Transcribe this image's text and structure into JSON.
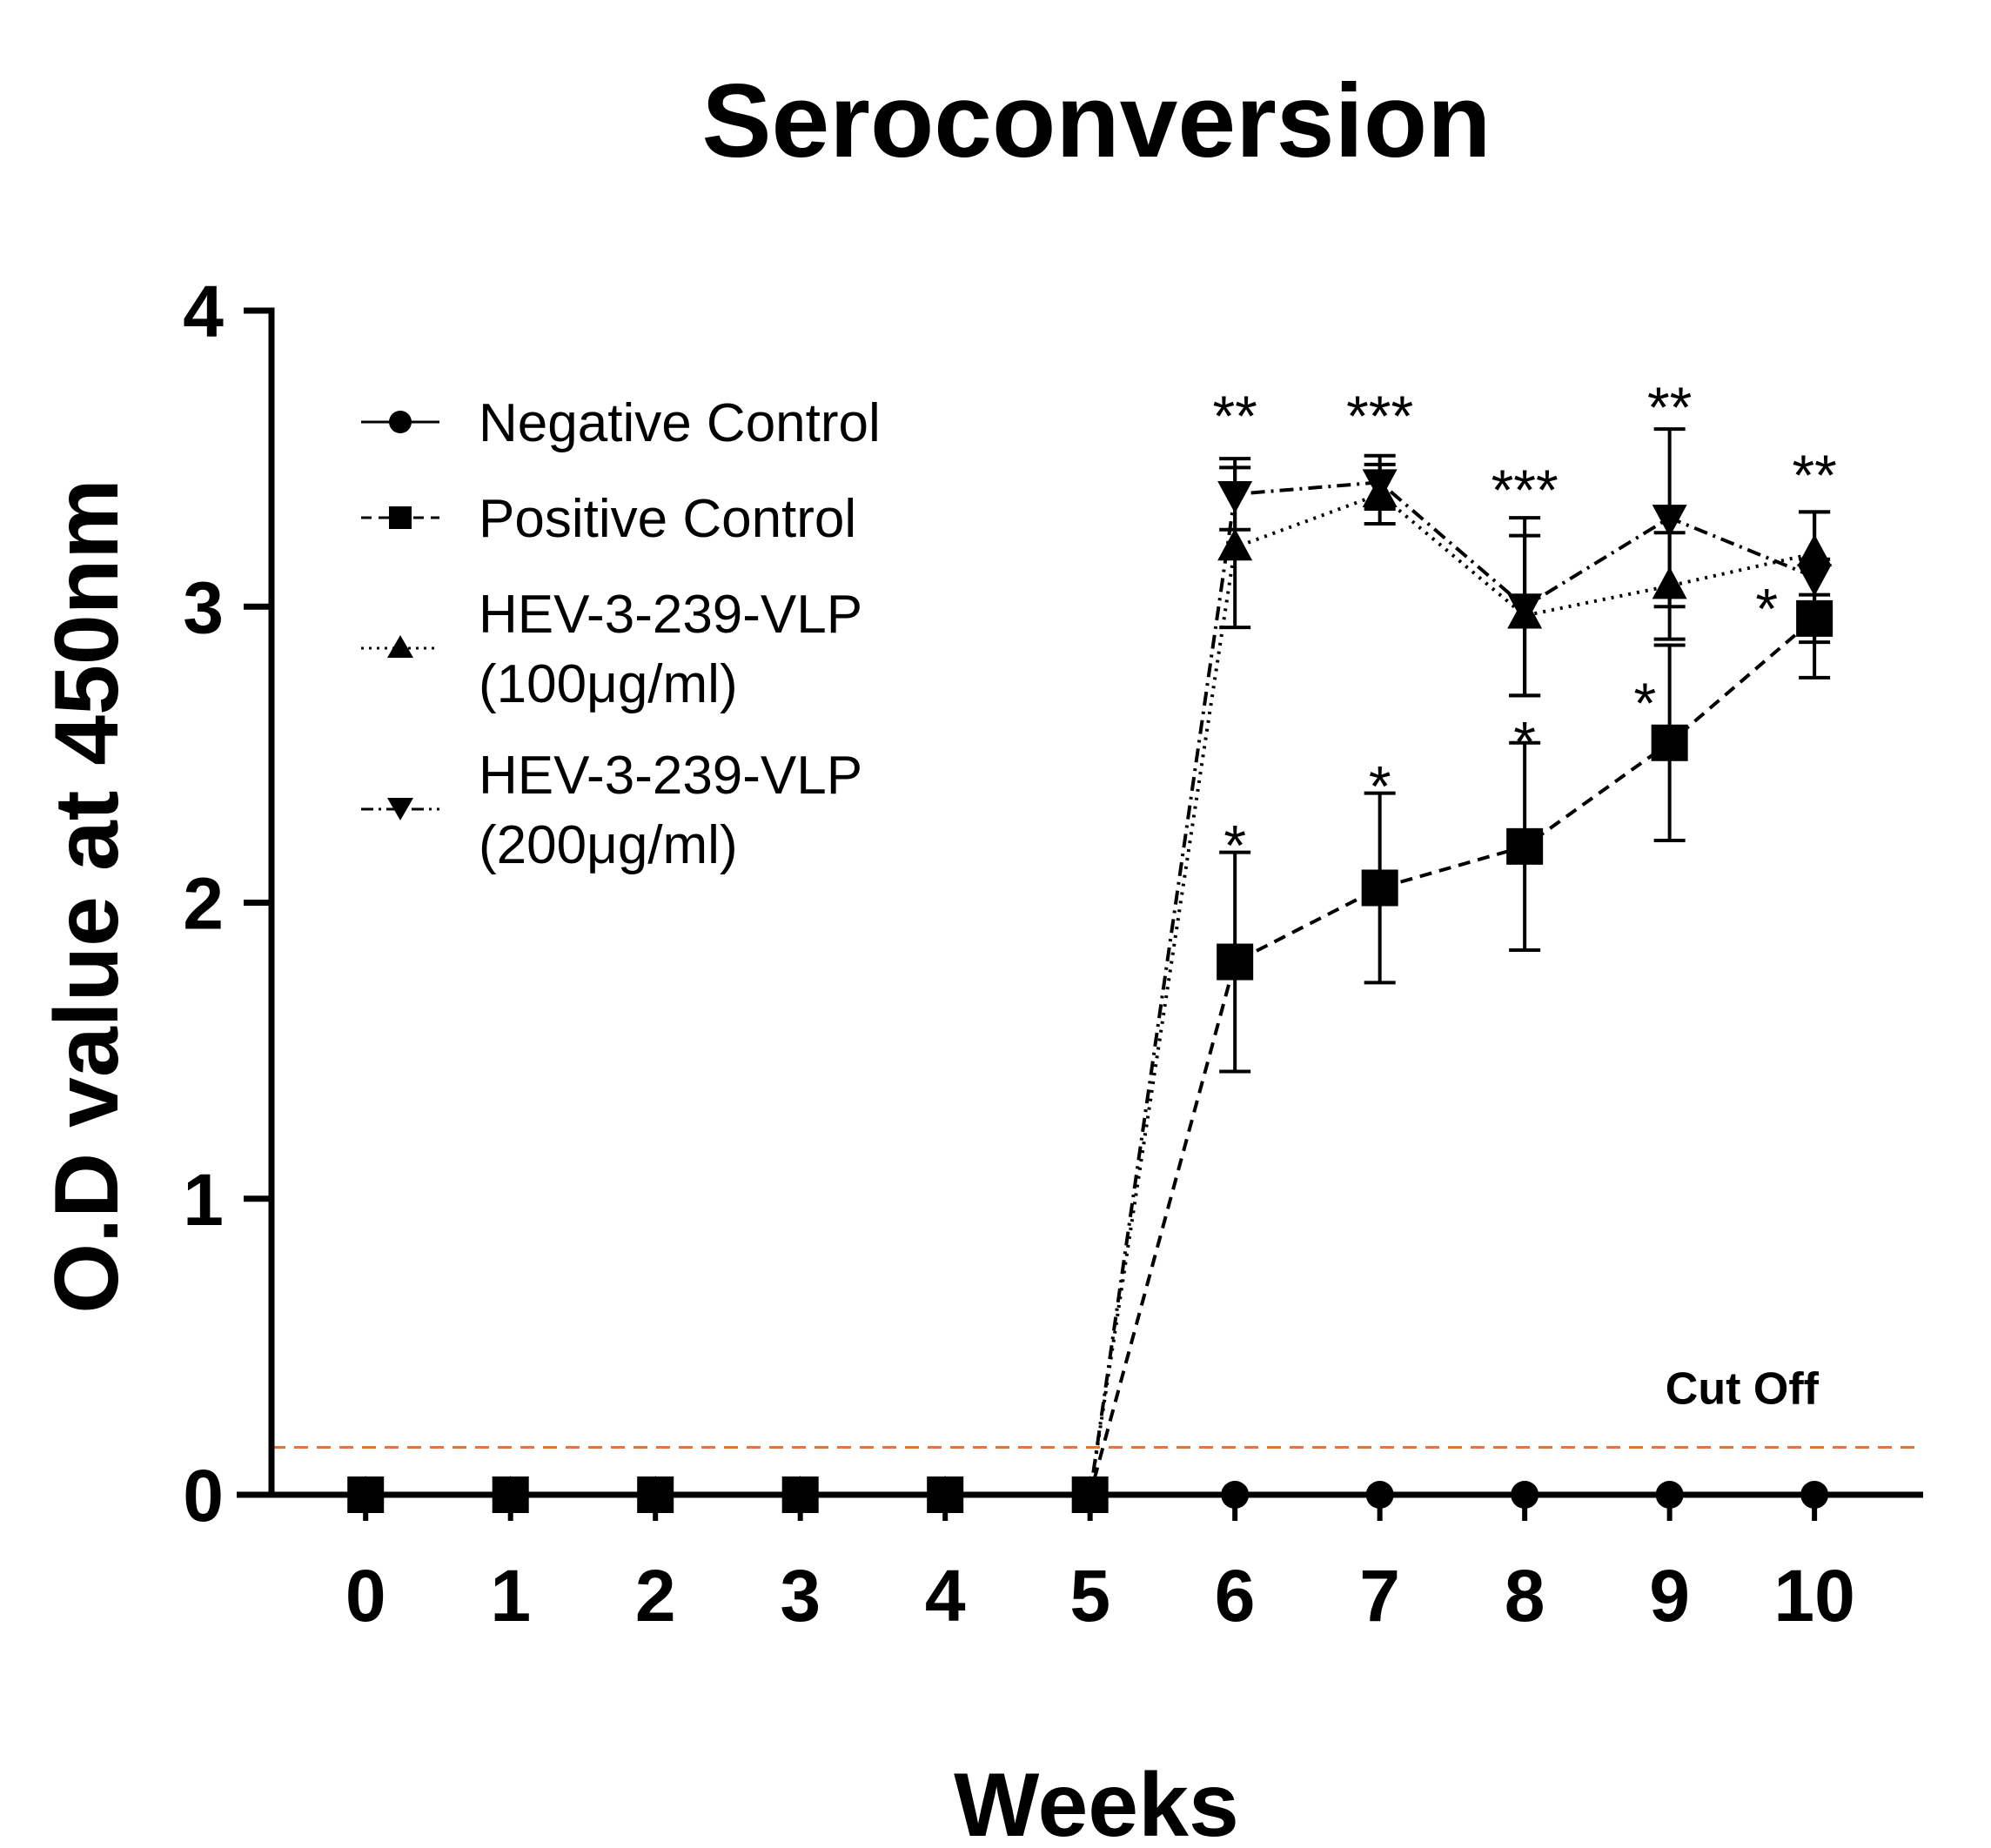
{
  "chart_data": {
    "type": "line",
    "title": "Seroconversion",
    "xlabel": "Weeks",
    "ylabel": "O.D value at 450nm",
    "x": [
      0,
      1,
      2,
      3,
      4,
      5,
      6,
      7,
      8,
      9,
      10
    ],
    "xlim": [
      -0.65,
      10.75
    ],
    "ylim": [
      0,
      4
    ],
    "y_ticks": [
      0,
      1,
      2,
      3,
      4
    ],
    "legend_position": "top-left",
    "cutoff": {
      "label": "Cut Off",
      "value": 0.16,
      "color": "#e2773d"
    },
    "series": [
      {
        "name": "Negative Control",
        "marker": "circle",
        "dash": "solid",
        "values": [
          0,
          0,
          0,
          0,
          0,
          0,
          0,
          0,
          0,
          0,
          0
        ],
        "errors": [
          0,
          0,
          0,
          0,
          0,
          0,
          0,
          0,
          0,
          0,
          0
        ]
      },
      {
        "name": "Positive Control",
        "marker": "square",
        "dash": "dashed",
        "values": [
          0,
          0,
          0,
          0,
          0,
          0,
          1.8,
          2.05,
          2.19,
          2.54,
          2.96
        ],
        "errors": [
          0,
          0,
          0,
          0,
          0,
          0,
          0.37,
          0.32,
          0.35,
          0.33,
          0.2
        ]
      },
      {
        "name": "HEV-3-239-VLP",
        "name2": "(100μg/ml)",
        "marker": "triangle-up",
        "dash": "dotted",
        "values": [
          0,
          0,
          0,
          0,
          0,
          0,
          3.2,
          3.38,
          2.97,
          3.07,
          3.18
        ],
        "errors": [
          0,
          0,
          0,
          0,
          0,
          0,
          0.27,
          0.1,
          0.27,
          0.18,
          0.14
        ]
      },
      {
        "name": "HEV-3-239-VLP",
        "name2": "(200μg/ml)",
        "marker": "triangle-down",
        "dash": "dashdot",
        "values": [
          0,
          0,
          0,
          0,
          0,
          0,
          3.38,
          3.42,
          3.0,
          3.3,
          3.1
        ],
        "errors": [
          0,
          0,
          0,
          0,
          0,
          0,
          0.12,
          0.09,
          0.3,
          0.3,
          0.22
        ]
      }
    ],
    "annotations": [
      {
        "x": 6,
        "y": 3.65,
        "text": "**"
      },
      {
        "x": 7,
        "y": 3.65,
        "text": "***"
      },
      {
        "x": 8,
        "y": 3.4,
        "text": "***"
      },
      {
        "x": 9,
        "y": 3.68,
        "text": "**"
      },
      {
        "x": 10,
        "y": 3.45,
        "text": "**"
      },
      {
        "x": 6,
        "y": 2.2,
        "text": "*"
      },
      {
        "x": 7,
        "y": 2.4,
        "text": "*"
      },
      {
        "x": 8,
        "y": 2.55,
        "text": "*"
      },
      {
        "x": 8.83,
        "y": 2.68,
        "text": "*"
      },
      {
        "x": 9.67,
        "y": 3.0,
        "text": "*"
      }
    ]
  }
}
